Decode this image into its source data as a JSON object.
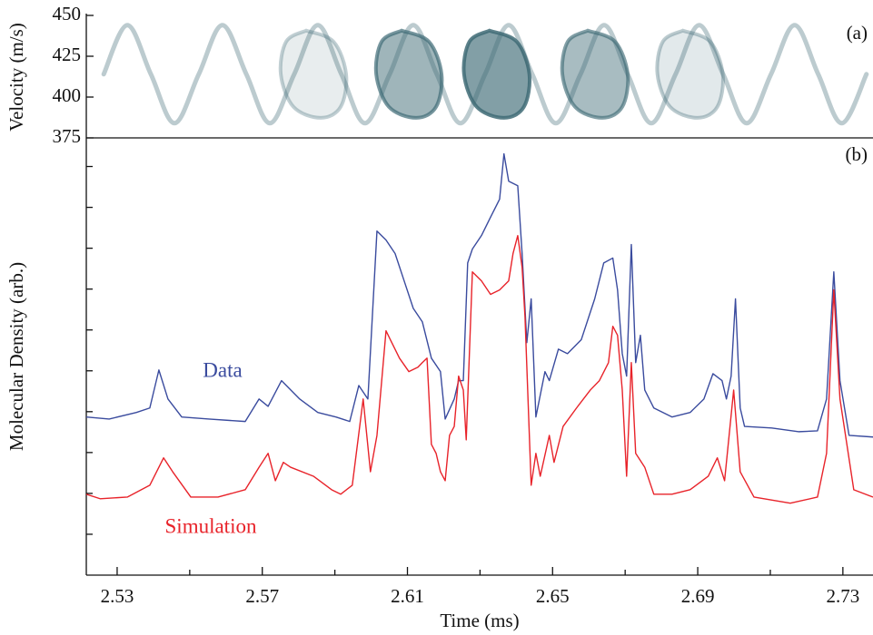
{
  "chart_data": [
    {
      "type": "phase-space",
      "ylabel": "Velocity (m/s)",
      "panel_label": "(a)",
      "xlim": [
        2.5215,
        2.7383
      ],
      "ylim": [
        375,
        450
      ],
      "yticks": [
        375,
        400,
        425,
        450
      ],
      "color": "#3f6b76",
      "ridge": {
        "x": [
          2.5263,
          2.5328,
          2.5393,
          2.5458,
          2.5525,
          2.559,
          2.5656,
          2.5721,
          2.5788,
          2.5853,
          2.5918,
          2.5983,
          2.6051,
          2.6116,
          2.6181,
          2.6246,
          2.6314,
          2.6379,
          2.6444,
          2.6509,
          2.6577,
          2.6642,
          2.6707,
          2.6772,
          2.6839,
          2.6904,
          2.697,
          2.7035,
          2.7102,
          2.7167,
          2.7232,
          2.7297,
          2.7365
        ],
        "values": [
          414,
          444,
          414,
          384,
          414,
          444,
          414,
          384,
          414,
          444,
          414,
          384,
          414,
          444,
          414,
          384,
          414,
          444,
          414,
          384,
          414,
          444,
          414,
          384,
          414,
          444,
          414,
          384,
          414,
          444,
          414,
          384,
          414
        ]
      },
      "loops": [
        {
          "x": [
            2.5821,
            2.5896,
            2.5931,
            2.5916,
            2.5861,
            2.5786,
            2.5751,
            2.5766
          ],
          "values": [
            440.7,
            434,
            414,
            394,
            387.3,
            394,
            414,
            434
          ],
          "intensity": 0.12
        },
        {
          "x": [
            2.6084,
            2.6159,
            2.6194,
            2.6179,
            2.6124,
            2.6049,
            2.6014,
            2.6029
          ],
          "values": [
            440.7,
            434,
            414,
            394,
            387.3,
            394,
            414,
            434
          ],
          "intensity": 0.5
        },
        {
          "x": [
            2.6326,
            2.6401,
            2.6436,
            2.6421,
            2.6366,
            2.6291,
            2.6256,
            2.6271
          ],
          "values": [
            440.7,
            434,
            414,
            394,
            387.3,
            394,
            414,
            434
          ],
          "intensity": 0.65
        },
        {
          "x": [
            2.6597,
            2.6672,
            2.6707,
            2.6692,
            2.6637,
            2.6562,
            2.6527,
            2.6542
          ],
          "values": [
            440.7,
            434,
            414,
            394,
            387.3,
            394,
            414,
            434
          ],
          "intensity": 0.45
        },
        {
          "x": [
            2.6859,
            2.6934,
            2.6969,
            2.6954,
            2.6899,
            2.6824,
            2.6789,
            2.6804
          ],
          "values": [
            440.7,
            434,
            414,
            394,
            387.3,
            394,
            414,
            434
          ],
          "intensity": 0.15
        }
      ]
    },
    {
      "type": "line",
      "xlabel": "Time (ms)",
      "ylabel": "Molecular Density (arb.)",
      "panel_label": "(b)",
      "xlim": [
        2.5215,
        2.7383
      ],
      "xticks": [
        2.53,
        2.57,
        2.61,
        2.65,
        2.69,
        2.73
      ],
      "xminor_ticks": [
        2.55,
        2.59,
        2.63,
        2.67,
        2.71
      ],
      "ylim": [
        0,
        10.7
      ],
      "yminor_ticks": [
        1,
        2,
        3,
        4,
        5,
        6,
        7,
        8,
        9,
        10
      ],
      "series": [
        {
          "name": "Data",
          "color": "#3a4b9e",
          "x": [
            2.5215,
            2.5278,
            2.5353,
            2.539,
            2.5415,
            2.544,
            2.5478,
            2.5553,
            2.5653,
            2.5691,
            2.5716,
            2.5753,
            2.5803,
            2.5853,
            2.5903,
            2.5941,
            2.5966,
            2.5991,
            2.6016,
            2.6041,
            2.6066,
            2.6091,
            2.6116,
            2.6141,
            2.6166,
            2.6191,
            2.6204,
            2.6229,
            2.6241,
            2.6254,
            2.6266,
            2.6279,
            2.6304,
            2.6329,
            2.6354,
            2.6366,
            2.6379,
            2.6404,
            2.6416,
            2.6429,
            2.6441,
            2.6454,
            2.6479,
            2.6491,
            2.6516,
            2.6541,
            2.6579,
            2.6616,
            2.6641,
            2.6666,
            2.6679,
            2.6692,
            2.6704,
            2.6717,
            2.6729,
            2.6742,
            2.6754,
            2.6779,
            2.6829,
            2.6879,
            2.6917,
            2.6942,
            2.6967,
            2.6979,
            2.6992,
            2.7004,
            2.7017,
            2.7029,
            2.7104,
            2.7179,
            2.723,
            2.7255,
            2.7275,
            2.7292,
            2.7317,
            2.7383
          ],
          "values": [
            3.87,
            3.82,
            3.98,
            4.09,
            5.02,
            4.31,
            3.87,
            3.82,
            3.76,
            4.31,
            4.13,
            4.76,
            4.31,
            3.98,
            3.87,
            3.76,
            4.64,
            4.31,
            8.42,
            8.2,
            7.87,
            7.2,
            6.53,
            6.2,
            5.31,
            4.98,
            3.82,
            4.31,
            4.76,
            4.76,
            7.64,
            7.98,
            8.31,
            8.76,
            9.2,
            10.31,
            9.64,
            9.53,
            7.87,
            5.69,
            6.76,
            3.87,
            4.98,
            4.76,
            5.53,
            5.42,
            5.76,
            6.76,
            7.64,
            7.76,
            6.98,
            5.42,
            4.87,
            8.09,
            5.2,
            5.87,
            4.53,
            4.09,
            3.87,
            3.98,
            4.31,
            4.93,
            4.76,
            4.31,
            4.87,
            6.76,
            4.09,
            3.64,
            3.6,
            3.51,
            3.53,
            4.31,
            7.42,
            4.76,
            3.42,
            3.38
          ]
        },
        {
          "name": "Simulation",
          "color": "#e8232a",
          "x": [
            2.5215,
            2.5253,
            2.5328,
            2.539,
            2.5428,
            2.5453,
            2.5503,
            2.5578,
            2.5653,
            2.5691,
            2.5716,
            2.5736,
            2.5758,
            2.5778,
            2.5841,
            2.5891,
            2.5916,
            2.5948,
            2.5978,
            2.5998,
            2.6016,
            2.6041,
            2.6053,
            2.6078,
            2.6104,
            2.6129,
            2.6141,
            2.6154,
            2.6166,
            2.6179,
            2.6191,
            2.6204,
            2.6216,
            2.6229,
            2.6241,
            2.6254,
            2.6262,
            2.6279,
            2.6304,
            2.6329,
            2.6354,
            2.6379,
            2.6391,
            2.6404,
            2.6416,
            2.6424,
            2.6441,
            2.6454,
            2.6466,
            2.6491,
            2.6504,
            2.6529,
            2.6566,
            2.6604,
            2.6629,
            2.6654,
            2.6666,
            2.6679,
            2.6692,
            2.6704,
            2.6717,
            2.6729,
            2.6754,
            2.6779,
            2.6829,
            2.6879,
            2.6929,
            2.6954,
            2.6974,
            2.6999,
            2.7017,
            2.7055,
            2.7155,
            2.723,
            2.7255,
            2.7275,
            2.7292,
            2.733,
            2.7383
          ],
          "values": [
            1.98,
            1.87,
            1.91,
            2.2,
            2.87,
            2.53,
            1.91,
            1.91,
            2.09,
            2.64,
            2.98,
            2.31,
            2.76,
            2.64,
            2.42,
            2.09,
            1.98,
            2.2,
            4.31,
            2.53,
            3.42,
            5.98,
            5.76,
            5.31,
            4.98,
            5.09,
            5.2,
            5.31,
            3.2,
            2.98,
            2.53,
            2.31,
            3.42,
            3.64,
            4.87,
            4.53,
            3.31,
            7.42,
            7.2,
            6.87,
            6.98,
            7.2,
            7.87,
            8.31,
            7.53,
            6.31,
            2.2,
            2.98,
            2.42,
            3.42,
            2.76,
            3.64,
            4.09,
            4.53,
            4.76,
            5.2,
            6.09,
            5.87,
            4.53,
            2.42,
            5.2,
            2.98,
            2.64,
            1.98,
            1.98,
            2.09,
            2.42,
            2.87,
            2.31,
            4.53,
            2.53,
            1.91,
            1.76,
            1.91,
            2.98,
            6.98,
            4.31,
            2.09,
            1.91
          ]
        }
      ]
    }
  ]
}
